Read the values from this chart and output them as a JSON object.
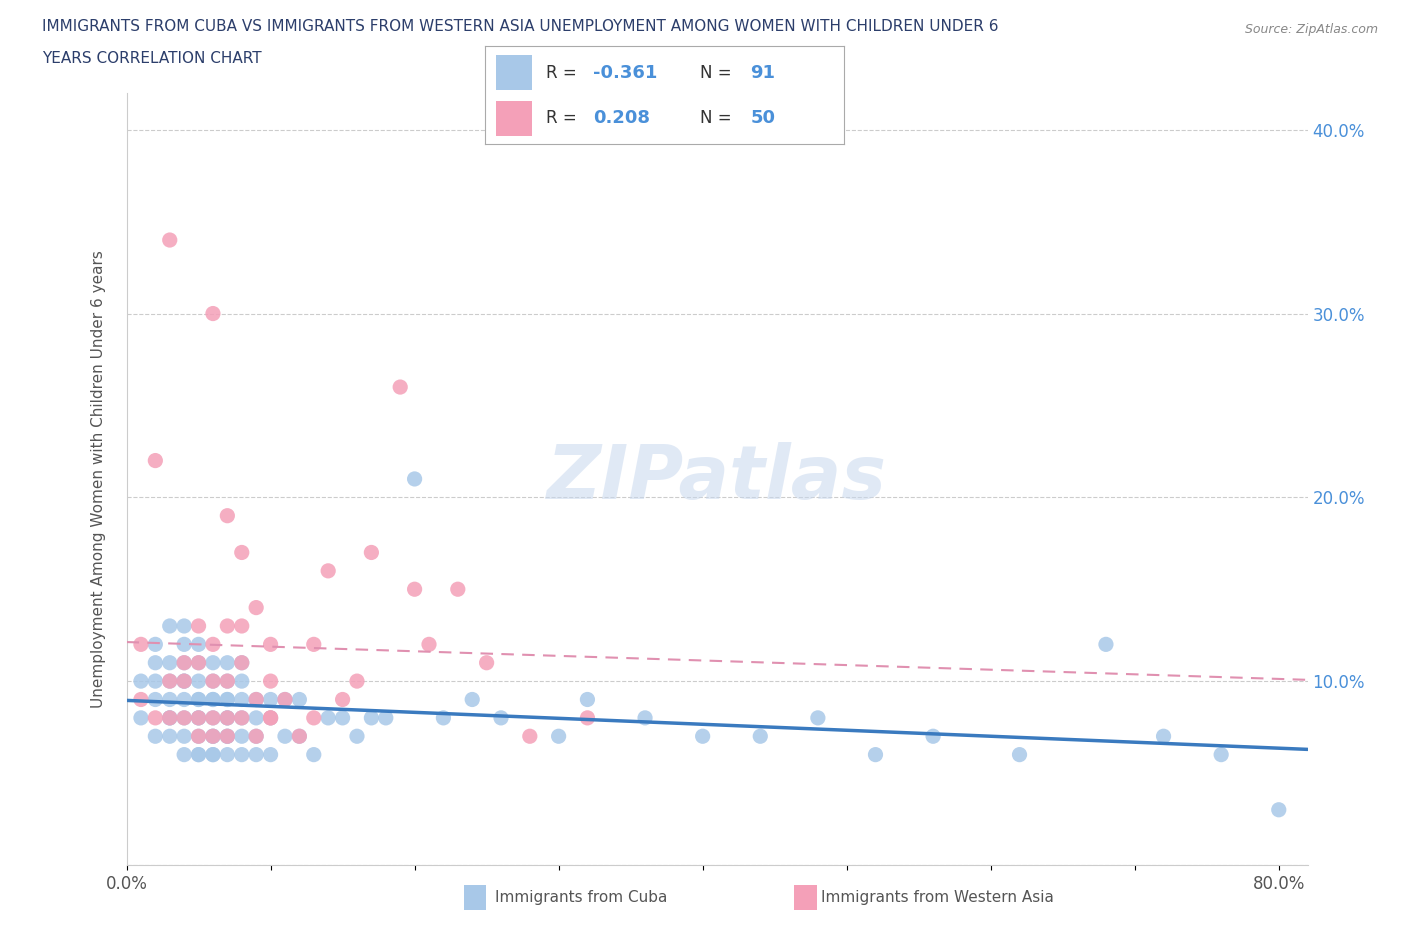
{
  "title_line1": "IMMIGRANTS FROM CUBA VS IMMIGRANTS FROM WESTERN ASIA UNEMPLOYMENT AMONG WOMEN WITH CHILDREN UNDER 6",
  "title_line2": "YEARS CORRELATION CHART",
  "source": "Source: ZipAtlas.com",
  "ylabel": "Unemployment Among Women with Children Under 6 years",
  "xlim": [
    0.0,
    0.82
  ],
  "ylim": [
    0.0,
    0.42
  ],
  "cuba_R": -0.361,
  "cuba_N": 91,
  "wasia_R": 0.208,
  "wasia_N": 50,
  "cuba_color": "#a8c8e8",
  "wasia_color": "#f4a0b8",
  "cuba_line_color": "#3a7abf",
  "wasia_line_color": "#e06090",
  "wasia_dash_color": "#e090b0",
  "r_value_color": "#4a90d9",
  "watermark": "ZIPatlas",
  "cuba_x": [
    0.01,
    0.01,
    0.02,
    0.02,
    0.02,
    0.02,
    0.02,
    0.03,
    0.03,
    0.03,
    0.03,
    0.03,
    0.03,
    0.03,
    0.04,
    0.04,
    0.04,
    0.04,
    0.04,
    0.04,
    0.04,
    0.04,
    0.04,
    0.05,
    0.05,
    0.05,
    0.05,
    0.05,
    0.05,
    0.05,
    0.05,
    0.05,
    0.05,
    0.06,
    0.06,
    0.06,
    0.06,
    0.06,
    0.06,
    0.06,
    0.06,
    0.06,
    0.07,
    0.07,
    0.07,
    0.07,
    0.07,
    0.07,
    0.07,
    0.07,
    0.07,
    0.08,
    0.08,
    0.08,
    0.08,
    0.08,
    0.08,
    0.09,
    0.09,
    0.09,
    0.09,
    0.1,
    0.1,
    0.1,
    0.11,
    0.11,
    0.12,
    0.12,
    0.13,
    0.14,
    0.15,
    0.16,
    0.17,
    0.18,
    0.2,
    0.22,
    0.24,
    0.26,
    0.3,
    0.32,
    0.36,
    0.4,
    0.44,
    0.48,
    0.52,
    0.56,
    0.62,
    0.68,
    0.72,
    0.76,
    0.8
  ],
  "cuba_y": [
    0.08,
    0.1,
    0.07,
    0.09,
    0.11,
    0.1,
    0.12,
    0.07,
    0.08,
    0.09,
    0.1,
    0.11,
    0.13,
    0.08,
    0.06,
    0.08,
    0.09,
    0.1,
    0.11,
    0.13,
    0.07,
    0.1,
    0.12,
    0.06,
    0.08,
    0.09,
    0.1,
    0.11,
    0.07,
    0.09,
    0.06,
    0.08,
    0.12,
    0.06,
    0.07,
    0.08,
    0.09,
    0.1,
    0.11,
    0.07,
    0.09,
    0.06,
    0.07,
    0.08,
    0.09,
    0.1,
    0.11,
    0.06,
    0.08,
    0.07,
    0.09,
    0.06,
    0.08,
    0.1,
    0.07,
    0.09,
    0.11,
    0.06,
    0.08,
    0.09,
    0.07,
    0.06,
    0.08,
    0.09,
    0.07,
    0.09,
    0.07,
    0.09,
    0.06,
    0.08,
    0.08,
    0.07,
    0.08,
    0.08,
    0.21,
    0.08,
    0.09,
    0.08,
    0.07,
    0.09,
    0.08,
    0.07,
    0.07,
    0.08,
    0.06,
    0.07,
    0.06,
    0.12,
    0.07,
    0.06,
    0.03
  ],
  "wasia_x": [
    0.01,
    0.01,
    0.02,
    0.02,
    0.03,
    0.03,
    0.03,
    0.04,
    0.04,
    0.04,
    0.05,
    0.05,
    0.05,
    0.05,
    0.06,
    0.06,
    0.06,
    0.06,
    0.06,
    0.07,
    0.07,
    0.07,
    0.07,
    0.07,
    0.08,
    0.08,
    0.08,
    0.08,
    0.09,
    0.09,
    0.09,
    0.1,
    0.1,
    0.1,
    0.1,
    0.11,
    0.12,
    0.13,
    0.13,
    0.14,
    0.15,
    0.16,
    0.17,
    0.19,
    0.2,
    0.21,
    0.23,
    0.25,
    0.28,
    0.32
  ],
  "wasia_y": [
    0.09,
    0.12,
    0.22,
    0.08,
    0.34,
    0.1,
    0.08,
    0.11,
    0.08,
    0.1,
    0.11,
    0.13,
    0.08,
    0.07,
    0.3,
    0.1,
    0.12,
    0.08,
    0.07,
    0.13,
    0.19,
    0.1,
    0.08,
    0.07,
    0.11,
    0.17,
    0.13,
    0.08,
    0.09,
    0.14,
    0.07,
    0.08,
    0.12,
    0.1,
    0.08,
    0.09,
    0.07,
    0.12,
    0.08,
    0.16,
    0.09,
    0.1,
    0.17,
    0.26,
    0.15,
    0.12,
    0.15,
    0.11,
    0.07,
    0.08
  ]
}
